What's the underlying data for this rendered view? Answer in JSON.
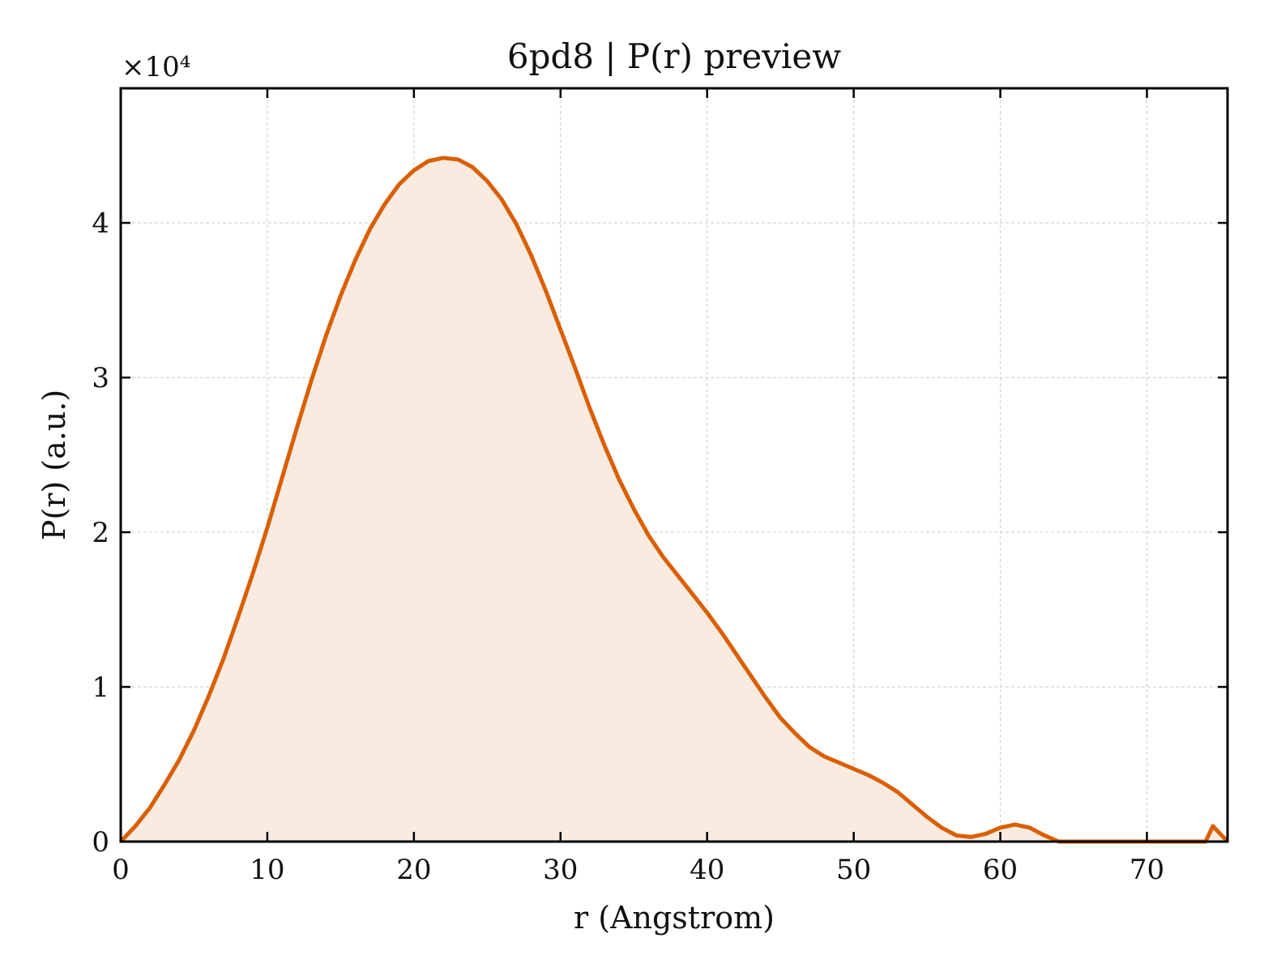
{
  "chart_data": {
    "type": "area",
    "title": "6pd8 | P(r) preview",
    "xlabel": "r (Angstrom)",
    "ylabel": "P(r) (a.u.)",
    "y_multiplier": "×10⁴",
    "xlim": [
      0,
      75.5
    ],
    "ylim": [
      0,
      4.87
    ],
    "x_ticks": [
      0,
      10,
      20,
      30,
      40,
      50,
      60,
      70
    ],
    "x_tick_labels": [
      "0",
      "10",
      "20",
      "30",
      "40",
      "50",
      "60",
      "70"
    ],
    "y_ticks": [
      0,
      1,
      2,
      3,
      4
    ],
    "y_tick_labels": [
      "0",
      "1",
      "2",
      "3",
      "4"
    ],
    "grid": true,
    "colors": {
      "line": "#d95f02",
      "fill": "#f9ebe0",
      "grid": "#d4d4d4",
      "axes": "#000000"
    },
    "series": [
      {
        "x": [
          0,
          1,
          2,
          3,
          4,
          5,
          6,
          7,
          8,
          9,
          10,
          11,
          12,
          13,
          14,
          15,
          16,
          17,
          18,
          19,
          20,
          21,
          22,
          23,
          24,
          25,
          26,
          27,
          28,
          29,
          30,
          31,
          32,
          33,
          34,
          35,
          36,
          37,
          38,
          39,
          40,
          41,
          42,
          43,
          44,
          45,
          46,
          47,
          48,
          49,
          50,
          51,
          52,
          53,
          54,
          55,
          56,
          57,
          58,
          59,
          60,
          61,
          62,
          63,
          64,
          65,
          66,
          67,
          68,
          69,
          70,
          71,
          72,
          73,
          74,
          74.5,
          75,
          75.5
        ],
        "values": [
          0.0,
          0.1,
          0.22,
          0.37,
          0.53,
          0.72,
          0.94,
          1.18,
          1.45,
          1.73,
          2.03,
          2.35,
          2.67,
          2.98,
          3.27,
          3.53,
          3.76,
          3.96,
          4.12,
          4.25,
          4.34,
          4.4,
          4.42,
          4.41,
          4.36,
          4.27,
          4.15,
          3.99,
          3.79,
          3.56,
          3.31,
          3.06,
          2.8,
          2.56,
          2.34,
          2.15,
          1.98,
          1.84,
          1.72,
          1.6,
          1.48,
          1.35,
          1.21,
          1.07,
          0.93,
          0.8,
          0.7,
          0.61,
          0.55,
          0.51,
          0.47,
          0.43,
          0.38,
          0.32,
          0.24,
          0.16,
          0.09,
          0.04,
          0.03,
          0.05,
          0.09,
          0.11,
          0.09,
          0.04,
          0.0,
          0.0,
          0.0,
          0.0,
          0.0,
          0.0,
          0.0,
          0.0,
          0.0,
          0.0,
          0.0,
          0.1,
          0.05,
          0.0
        ]
      }
    ]
  }
}
